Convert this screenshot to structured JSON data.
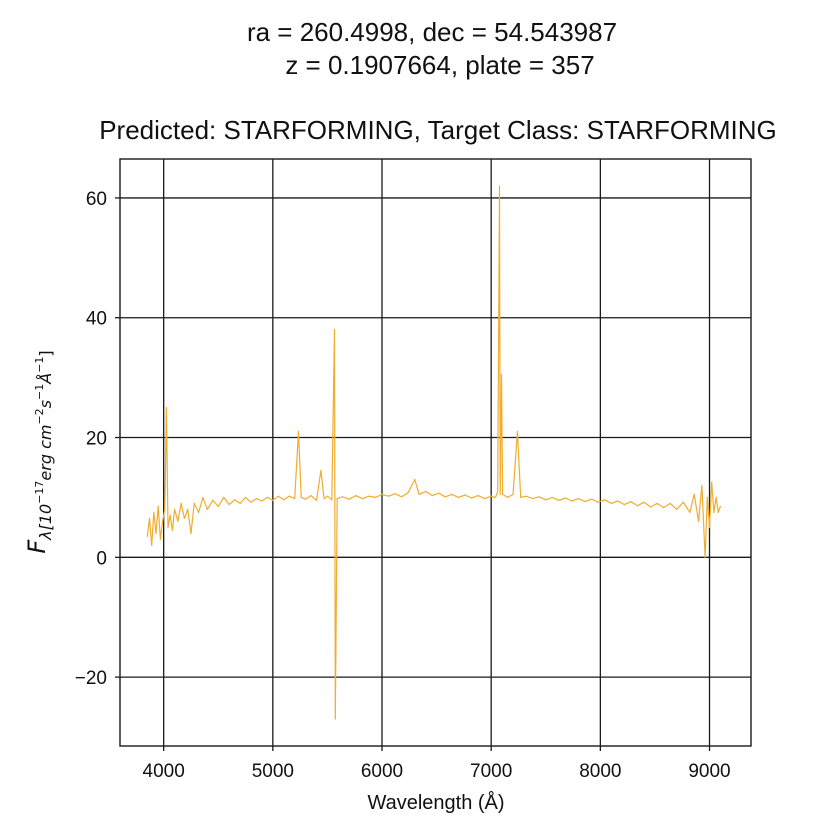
{
  "chart_data": {
    "type": "line",
    "title_line1": "ra = 260.4998, dec = 54.543987",
    "title_line2": "z = 0.1907664, plate = 357",
    "subtitle": "Predicted: STARFORMING, Target Class: STARFORMING",
    "xlabel": "Wavelength (Å)",
    "ylabel": {
      "main": "F",
      "sub": "λ[10",
      "exp1": "−17",
      "mid1": "erg cm",
      "exp2": "−2",
      "mid2": "s",
      "exp3": "−1",
      "mid3": "Å",
      "exp4": "−1",
      "end": "]"
    },
    "xlim": [
      3600,
      9380
    ],
    "ylim": [
      -31.5,
      66.5
    ],
    "grid": true,
    "x_ticks": [
      4000,
      5000,
      6000,
      7000,
      8000,
      9000
    ],
    "x_tick_labels": [
      "4000",
      "5000",
      "6000",
      "7000",
      "8000",
      "9000"
    ],
    "y_ticks": [
      -20,
      0,
      20,
      40,
      60
    ],
    "y_tick_labels": [
      "−20",
      "0",
      "20",
      "40",
      "60"
    ],
    "colors": {
      "spectrum": "#f0ad2e",
      "grid": "#1a1a1a",
      "frame": "#1a1a1a"
    },
    "series": [
      {
        "values": [
          {
            "x": 3850,
            "y": 3.5
          },
          {
            "x": 3870,
            "y": 6.5
          },
          {
            "x": 3890,
            "y": 2.0
          },
          {
            "x": 3910,
            "y": 7.5
          },
          {
            "x": 3930,
            "y": 4.0
          },
          {
            "x": 3950,
            "y": 8.5
          },
          {
            "x": 3970,
            "y": 3.0
          },
          {
            "x": 3990,
            "y": 6.0
          },
          {
            "x": 4010,
            "y": 8.0
          },
          {
            "x": 4025,
            "y": 25.0
          },
          {
            "x": 4040,
            "y": 5.0
          },
          {
            "x": 4060,
            "y": 7.0
          },
          {
            "x": 4080,
            "y": 4.5
          },
          {
            "x": 4100,
            "y": 8.0
          },
          {
            "x": 4130,
            "y": 6.0
          },
          {
            "x": 4160,
            "y": 9.0
          },
          {
            "x": 4190,
            "y": 6.5
          },
          {
            "x": 4220,
            "y": 8.0
          },
          {
            "x": 4250,
            "y": 4.0
          },
          {
            "x": 4280,
            "y": 9.0
          },
          {
            "x": 4320,
            "y": 7.5
          },
          {
            "x": 4360,
            "y": 10.0
          },
          {
            "x": 4400,
            "y": 8.0
          },
          {
            "x": 4450,
            "y": 9.5
          },
          {
            "x": 4500,
            "y": 8.5
          },
          {
            "x": 4550,
            "y": 10.0
          },
          {
            "x": 4600,
            "y": 8.8
          },
          {
            "x": 4650,
            "y": 9.6
          },
          {
            "x": 4700,
            "y": 9.0
          },
          {
            "x": 4750,
            "y": 10.0
          },
          {
            "x": 4800,
            "y": 9.2
          },
          {
            "x": 4850,
            "y": 9.8
          },
          {
            "x": 4900,
            "y": 9.4
          },
          {
            "x": 4950,
            "y": 10.0
          },
          {
            "x": 5000,
            "y": 9.5
          },
          {
            "x": 5050,
            "y": 10.2
          },
          {
            "x": 5100,
            "y": 9.6
          },
          {
            "x": 5150,
            "y": 10.2
          },
          {
            "x": 5200,
            "y": 9.8
          },
          {
            "x": 5235,
            "y": 21.0
          },
          {
            "x": 5260,
            "y": 10.0
          },
          {
            "x": 5300,
            "y": 9.7
          },
          {
            "x": 5350,
            "y": 10.3
          },
          {
            "x": 5400,
            "y": 9.5
          },
          {
            "x": 5440,
            "y": 14.5
          },
          {
            "x": 5470,
            "y": 9.8
          },
          {
            "x": 5500,
            "y": 10.2
          },
          {
            "x": 5540,
            "y": 9.6
          },
          {
            "x": 5565,
            "y": 38.0
          },
          {
            "x": 5572,
            "y": -27.0
          },
          {
            "x": 5590,
            "y": 9.8
          },
          {
            "x": 5640,
            "y": 10.1
          },
          {
            "x": 5700,
            "y": 9.7
          },
          {
            "x": 5760,
            "y": 10.3
          },
          {
            "x": 5820,
            "y": 9.8
          },
          {
            "x": 5880,
            "y": 10.2
          },
          {
            "x": 5940,
            "y": 10.0
          },
          {
            "x": 6000,
            "y": 10.5
          },
          {
            "x": 6060,
            "y": 10.2
          },
          {
            "x": 6120,
            "y": 10.6
          },
          {
            "x": 6180,
            "y": 10.1
          },
          {
            "x": 6240,
            "y": 10.8
          },
          {
            "x": 6300,
            "y": 13.0
          },
          {
            "x": 6340,
            "y": 10.5
          },
          {
            "x": 6400,
            "y": 11.0
          },
          {
            "x": 6460,
            "y": 10.3
          },
          {
            "x": 6520,
            "y": 10.7
          },
          {
            "x": 6580,
            "y": 10.1
          },
          {
            "x": 6640,
            "y": 10.5
          },
          {
            "x": 6700,
            "y": 10.0
          },
          {
            "x": 6760,
            "y": 10.4
          },
          {
            "x": 6820,
            "y": 9.9
          },
          {
            "x": 6880,
            "y": 10.3
          },
          {
            "x": 6940,
            "y": 9.8
          },
          {
            "x": 7000,
            "y": 10.2
          },
          {
            "x": 7040,
            "y": 10.0
          },
          {
            "x": 7060,
            "y": 11.0
          },
          {
            "x": 7076,
            "y": 62.0
          },
          {
            "x": 7083,
            "y": 10.5
          },
          {
            "x": 7095,
            "y": 30.5
          },
          {
            "x": 7105,
            "y": 10.5
          },
          {
            "x": 7150,
            "y": 10.0
          },
          {
            "x": 7200,
            "y": 10.5
          },
          {
            "x": 7240,
            "y": 21.0
          },
          {
            "x": 7270,
            "y": 10.0
          },
          {
            "x": 7320,
            "y": 10.2
          },
          {
            "x": 7380,
            "y": 9.8
          },
          {
            "x": 7440,
            "y": 10.1
          },
          {
            "x": 7500,
            "y": 9.6
          },
          {
            "x": 7560,
            "y": 10.0
          },
          {
            "x": 7620,
            "y": 9.5
          },
          {
            "x": 7680,
            "y": 9.9
          },
          {
            "x": 7740,
            "y": 9.4
          },
          {
            "x": 7800,
            "y": 9.8
          },
          {
            "x": 7860,
            "y": 9.3
          },
          {
            "x": 7920,
            "y": 9.7
          },
          {
            "x": 7980,
            "y": 9.2
          },
          {
            "x": 8040,
            "y": 9.6
          },
          {
            "x": 8100,
            "y": 9.0
          },
          {
            "x": 8160,
            "y": 9.4
          },
          {
            "x": 8220,
            "y": 8.8
          },
          {
            "x": 8280,
            "y": 9.3
          },
          {
            "x": 8340,
            "y": 8.6
          },
          {
            "x": 8400,
            "y": 9.2
          },
          {
            "x": 8460,
            "y": 8.4
          },
          {
            "x": 8520,
            "y": 9.0
          },
          {
            "x": 8580,
            "y": 8.3
          },
          {
            "x": 8640,
            "y": 9.0
          },
          {
            "x": 8700,
            "y": 8.0
          },
          {
            "x": 8760,
            "y": 9.2
          },
          {
            "x": 8820,
            "y": 7.5
          },
          {
            "x": 8860,
            "y": 10.5
          },
          {
            "x": 8900,
            "y": 6.0
          },
          {
            "x": 8930,
            "y": 12.0
          },
          {
            "x": 8960,
            "y": 0.0
          },
          {
            "x": 8980,
            "y": 10.0
          },
          {
            "x": 9000,
            "y": 5.0
          },
          {
            "x": 9020,
            "y": 12.5
          },
          {
            "x": 9040,
            "y": 7.5
          },
          {
            "x": 9060,
            "y": 10.0
          },
          {
            "x": 9080,
            "y": 7.5
          },
          {
            "x": 9100,
            "y": 8.5
          }
        ]
      }
    ]
  }
}
